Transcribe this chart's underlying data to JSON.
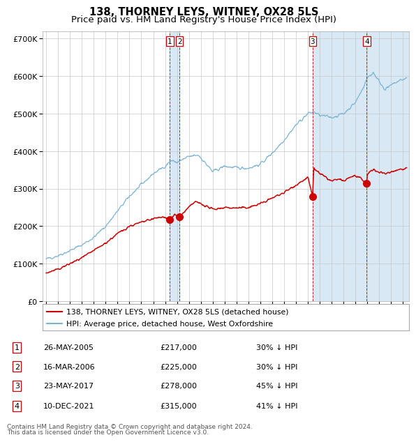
{
  "title": "138, THORNEY LEYS, WITNEY, OX28 5LS",
  "subtitle": "Price paid vs. HM Land Registry's House Price Index (HPI)",
  "legend_line1": "138, THORNEY LEYS, WITNEY, OX28 5LS (detached house)",
  "legend_line2": "HPI: Average price, detached house, West Oxfordshire",
  "footer1": "Contains HM Land Registry data © Crown copyright and database right 2024.",
  "footer2": "This data is licensed under the Open Government Licence v3.0.",
  "table_rows": [
    {
      "num": 1,
      "date": "26-MAY-2005",
      "price": "£217,000",
      "pct": "30% ↓ HPI"
    },
    {
      "num": 2,
      "date": "16-MAR-2006",
      "price": "£225,000",
      "pct": "30% ↓ HPI"
    },
    {
      "num": 3,
      "date": "23-MAY-2017",
      "price": "£278,000",
      "pct": "45% ↓ HPI"
    },
    {
      "num": 4,
      "date": "10-DEC-2021",
      "price": "£315,000",
      "pct": "41% ↓ HPI"
    }
  ],
  "trans_dates_decimal": [
    2005.397,
    2006.203,
    2017.389,
    2021.94
  ],
  "trans_prices": [
    217000,
    225000,
    278000,
    315000
  ],
  "hpi_color": "#7ab3d4",
  "price_color": "#cc0000",
  "dot_color": "#cc0000",
  "dashed_color": "#cc0000",
  "shade_color": "#d8e8f5",
  "grid_color": "#c8c8c8",
  "bg_color": "#ffffff",
  "ylim": [
    0,
    720000
  ],
  "yticks": [
    0,
    100000,
    200000,
    300000,
    400000,
    500000,
    600000,
    700000
  ],
  "ytick_labels": [
    "£0",
    "£100K",
    "£200K",
    "£300K",
    "£400K",
    "£500K",
    "£600K",
    "£700K"
  ],
  "xstart": 1994.7,
  "xend": 2025.5,
  "title_fontsize": 10.5,
  "subtitle_fontsize": 9.5,
  "axis_fontsize": 8,
  "table_fontsize": 8,
  "footer_fontsize": 6.5
}
